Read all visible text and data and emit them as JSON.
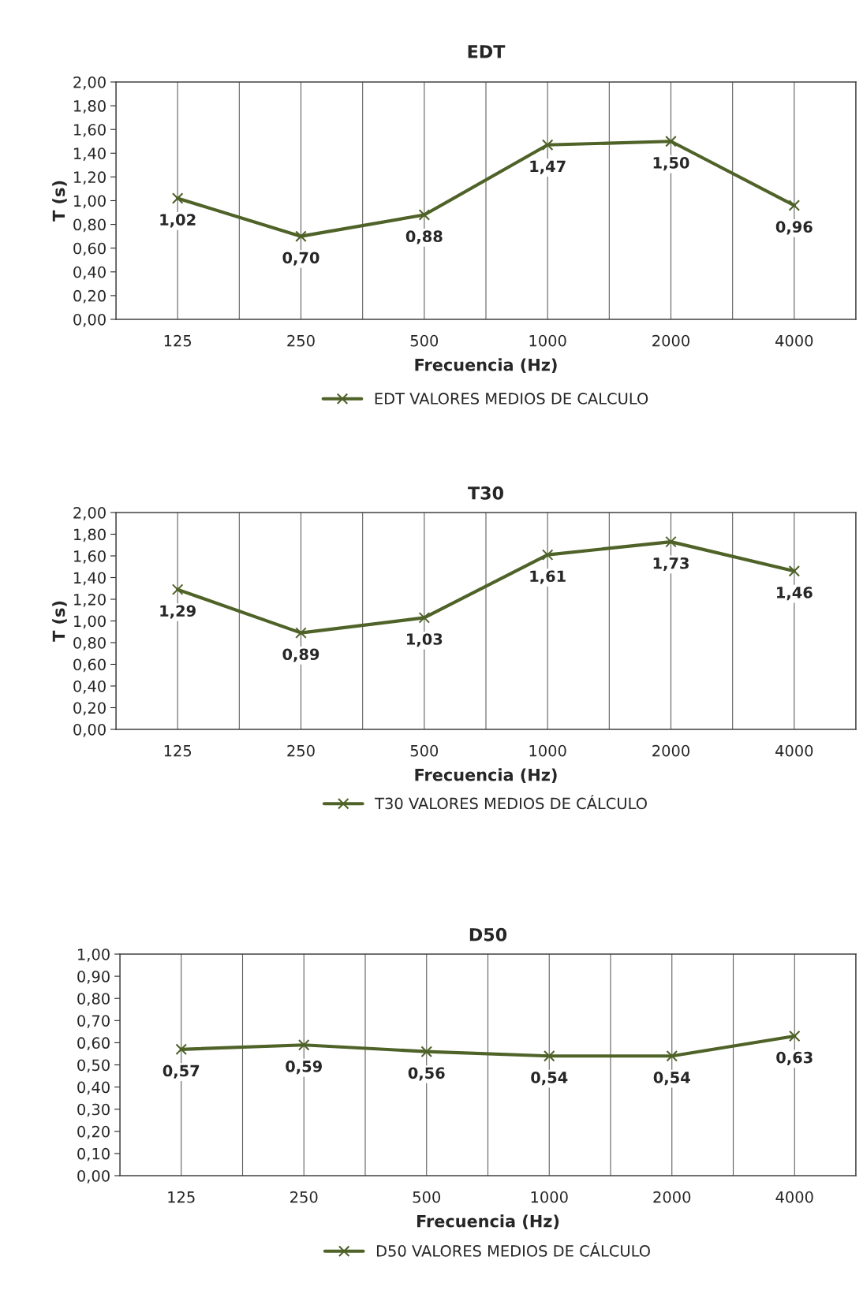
{
  "chart_data": [
    {
      "type": "line",
      "title": "EDT",
      "xlabel": "Frecuencia (Hz)",
      "ylabel": "T (s)",
      "categories": [
        "125",
        "250",
        "500",
        "1000",
        "2000",
        "4000"
      ],
      "series": [
        {
          "name": "EDT VALORES MEDIOS DE CALCULO",
          "color": "#4f6228",
          "values": [
            1.02,
            0.7,
            0.88,
            1.47,
            1.5,
            0.96
          ],
          "value_labels": [
            "1,02",
            "0,70",
            "0,88",
            "1,47",
            "1,50",
            "0,96"
          ]
        }
      ],
      "ylim": [
        0,
        2
      ],
      "yticks": [
        {
          "value": 0,
          "label": "0,00"
        },
        {
          "value": 0.2,
          "label": "0,20"
        },
        {
          "value": 0.4,
          "label": "0,40"
        },
        {
          "value": 0.6,
          "label": "0,60"
        },
        {
          "value": 0.8,
          "label": "0,80"
        },
        {
          "value": 1.0,
          "label": "1,00"
        },
        {
          "value": 1.2,
          "label": "1,20"
        },
        {
          "value": 1.4,
          "label": "1,40"
        },
        {
          "value": 1.6,
          "label": "1,60"
        },
        {
          "value": 1.8,
          "label": "1,80"
        },
        {
          "value": 2.0,
          "label": "2,00"
        }
      ],
      "grid": "x",
      "legend": "bottom",
      "marker": "cross",
      "line_style": "solid"
    },
    {
      "type": "line",
      "title": "T30",
      "xlabel": "Frecuencia (Hz)",
      "ylabel": "T (s)",
      "categories": [
        "125",
        "250",
        "500",
        "1000",
        "2000",
        "4000"
      ],
      "series": [
        {
          "name": "T30 VALORES MEDIOS DE CÁLCULO",
          "color": "#4f6228",
          "values": [
            1.29,
            0.89,
            1.03,
            1.61,
            1.73,
            1.46
          ],
          "value_labels": [
            "1,29",
            "0,89",
            "1,03",
            "1,61",
            "1,73",
            "1,46"
          ]
        }
      ],
      "ylim": [
        0,
        2
      ],
      "yticks": [
        {
          "value": 0,
          "label": "0,00"
        },
        {
          "value": 0.2,
          "label": "0,20"
        },
        {
          "value": 0.4,
          "label": "0,40"
        },
        {
          "value": 0.6,
          "label": "0,60"
        },
        {
          "value": 0.8,
          "label": "0,80"
        },
        {
          "value": 1.0,
          "label": "1,00"
        },
        {
          "value": 1.2,
          "label": "1,20"
        },
        {
          "value": 1.4,
          "label": "1,40"
        },
        {
          "value": 1.6,
          "label": "1,60"
        },
        {
          "value": 1.8,
          "label": "1,80"
        },
        {
          "value": 2.0,
          "label": "2,00"
        }
      ],
      "grid": "x",
      "legend": "bottom",
      "marker": "cross",
      "line_style": "solid"
    },
    {
      "type": "line",
      "title": "D50",
      "xlabel": "Frecuencia (Hz)",
      "categories": [
        "125",
        "250",
        "500",
        "1000",
        "2000",
        "4000"
      ],
      "series": [
        {
          "name": "D50 VALORES MEDIOS DE CÁLCULO",
          "color": "#4f6228",
          "values": [
            0.57,
            0.59,
            0.56,
            0.54,
            0.54,
            0.63
          ],
          "value_labels": [
            "0,57",
            "0,59",
            "0,56",
            "0,54",
            "0,54",
            "0,63"
          ]
        }
      ],
      "ylim": [
        0,
        1
      ],
      "yticks": [
        {
          "value": 0,
          "label": "0,00"
        },
        {
          "value": 0.1,
          "label": "0,10"
        },
        {
          "value": 0.2,
          "label": "0,20"
        },
        {
          "value": 0.3,
          "label": "0,30"
        },
        {
          "value": 0.4,
          "label": "0,40"
        },
        {
          "value": 0.5,
          "label": "0,50"
        },
        {
          "value": 0.6,
          "label": "0,60"
        },
        {
          "value": 0.7,
          "label": "0,70"
        },
        {
          "value": 0.8,
          "label": "0,80"
        },
        {
          "value": 0.9,
          "label": "0,90"
        },
        {
          "value": 1.0,
          "label": "1,00"
        }
      ],
      "grid": "x",
      "legend": "bottom",
      "marker": "cross",
      "line_style": "solid"
    }
  ]
}
